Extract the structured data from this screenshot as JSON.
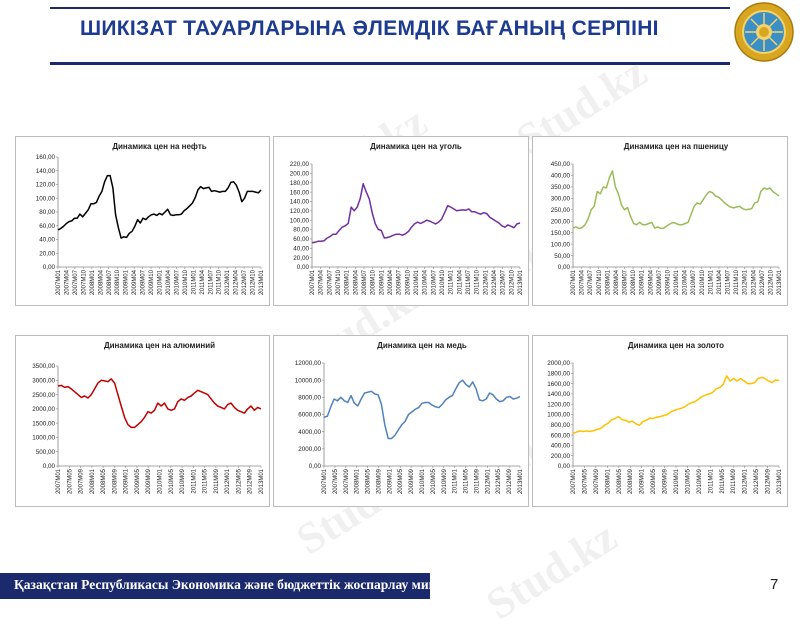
{
  "slide": {
    "title": "ШИКІЗАТ ТАУАРЛАРЫНА ӘЛЕМДІК БАҒАНЫҢ СЕРПІНІ",
    "footer": "Қазақстан Республикасы Экономика және бюджеттік жоспарлау министрлігі",
    "page_number": "7",
    "watermark": "Stud.kz"
  },
  "colors": {
    "title": "#1d3b8f",
    "rule": "#1a2a6c",
    "footer_bg": "#1a2a6c"
  },
  "chart_data": [
    {
      "type": "line",
      "title": "Динамика цен на нефть",
      "color": "#000000",
      "ylim": [
        0,
        160
      ],
      "yticks": [
        "0,00",
        "20,00",
        "40,00",
        "60,00",
        "80,00",
        "100,00",
        "120,00",
        "140,00",
        "160,00"
      ],
      "xticks": [
        "2007M01",
        "2007M04",
        "2007M07",
        "2007M10",
        "2008M01",
        "2008M04",
        "2008M07",
        "2008M10",
        "2009M01",
        "2009M04",
        "2009M07",
        "2009M10",
        "2010M01",
        "2010M04",
        "2010M07",
        "2010M10",
        "2011M01",
        "2011M04",
        "2011M07",
        "2011M10",
        "2012M01",
        "2012M04",
        "2012M07",
        "2012M10",
        "2013M01"
      ],
      "values": [
        54,
        56,
        59,
        63,
        66,
        67,
        71,
        71,
        77,
        73,
        78,
        83,
        92,
        92,
        94,
        103,
        110,
        124,
        133,
        133,
        115,
        76,
        57,
        42,
        44,
        43,
        49,
        52,
        59,
        69,
        64,
        71,
        69,
        73,
        76,
        77,
        75,
        78,
        76,
        80,
        84,
        76,
        75,
        76,
        76,
        77,
        82,
        85,
        89,
        93,
        101,
        112,
        117,
        114,
        115,
        116,
        110,
        111,
        110,
        109,
        110,
        110,
        115,
        123,
        124,
        119,
        109,
        95,
        100,
        110,
        110,
        110,
        109,
        108,
        112
      ]
    },
    {
      "type": "line",
      "title": "Динамика цен на уголь",
      "color": "#7030a0",
      "ylim": [
        0,
        220
      ],
      "yticks": [
        "0,00",
        "20,00",
        "40,00",
        "60,00",
        "80,00",
        "100,00",
        "120,00",
        "140,00",
        "160,00",
        "180,00",
        "200,00",
        "220,00"
      ],
      "xticks": [
        "2007M01",
        "2007M04",
        "2007M07",
        "2007M10",
        "2008M01",
        "2008M04",
        "2008M07",
        "2008M10",
        "2009M01",
        "2009M04",
        "2009M07",
        "2009M10",
        "2010M01",
        "2010M04",
        "2010M07",
        "2010M10",
        "2011M01",
        "2011M04",
        "2011M07",
        "2011M10",
        "2012M01",
        "2012M04",
        "2012M07",
        "2012M10",
        "2013M01"
      ],
      "values": [
        52,
        53,
        55,
        55,
        56,
        62,
        65,
        70,
        70,
        78,
        85,
        88,
        93,
        128,
        120,
        128,
        146,
        178,
        160,
        145,
        115,
        92,
        80,
        78,
        62,
        63,
        65,
        68,
        70,
        70,
        68,
        71,
        76,
        85,
        92,
        96,
        93,
        96,
        100,
        98,
        95,
        92,
        96,
        102,
        116,
        131,
        128,
        124,
        120,
        121,
        122,
        121,
        124,
        118,
        118,
        115,
        113,
        116,
        114,
        106,
        102,
        98,
        94,
        88,
        85,
        90,
        87,
        84,
        92,
        94
      ]
    },
    {
      "type": "line",
      "title": "Динамика цен на пшеницу",
      "color": "#9bbb59",
      "ylim": [
        0,
        450
      ],
      "yticks": [
        "0,00",
        "50,00",
        "100,00",
        "150,00",
        "200,00",
        "250,00",
        "300,00",
        "350,00",
        "400,00",
        "450,00"
      ],
      "xticks": [
        "2007M01",
        "2007M04",
        "2007M07",
        "2007M10",
        "2008M01",
        "2008M04",
        "2008M07",
        "2008M10",
        "2009M01",
        "2009M04",
        "2009M07",
        "2009M10",
        "2010M01",
        "2010M04",
        "2010M07",
        "2010M10",
        "2011M01",
        "2011M04",
        "2011M07",
        "2011M10",
        "2012M01",
        "2012M04",
        "2012M07",
        "2012M10",
        "2013M01"
      ],
      "values": [
        170,
        175,
        168,
        172,
        185,
        210,
        250,
        265,
        330,
        320,
        350,
        345,
        390,
        420,
        350,
        320,
        270,
        250,
        260,
        220,
        190,
        185,
        195,
        185,
        185,
        190,
        195,
        170,
        175,
        168,
        170,
        180,
        188,
        195,
        190,
        185,
        185,
        190,
        195,
        230,
        265,
        280,
        275,
        295,
        315,
        330,
        325,
        310,
        305,
        295,
        280,
        270,
        262,
        258,
        262,
        265,
        255,
        250,
        252,
        255,
        280,
        285,
        330,
        345,
        340,
        345,
        330,
        320,
        310
      ]
    },
    {
      "type": "line",
      "title": "Динамика цен на алюминий",
      "color": "#c00000",
      "ylim": [
        0,
        3500
      ],
      "yticks": [
        "0,00",
        "500,00",
        "1000,00",
        "1500,00",
        "2000,00",
        "2500,00",
        "3000,00",
        "3500,00"
      ],
      "xticks": [
        "2007M01",
        "2007M05",
        "2007M09",
        "2008M01",
        "2008M05",
        "2008M09",
        "2009M01",
        "2009M05",
        "2009M09",
        "2010M01",
        "2010M05",
        "2010M09",
        "2011M01",
        "2011M05",
        "2011M09",
        "2012M01",
        "2012M05",
        "2012M09",
        "2013M01"
      ],
      "values": [
        2800,
        2820,
        2750,
        2780,
        2700,
        2600,
        2500,
        2400,
        2450,
        2380,
        2500,
        2700,
        2900,
        3000,
        2980,
        2950,
        3050,
        2900,
        2500,
        2100,
        1700,
        1450,
        1350,
        1350,
        1450,
        1550,
        1700,
        1900,
        1850,
        1950,
        2200,
        2100,
        2200,
        2000,
        1950,
        2000,
        2250,
        2350,
        2300,
        2400,
        2450,
        2550,
        2650,
        2600,
        2550,
        2500,
        2350,
        2200,
        2100,
        2050,
        2000,
        2150,
        2200,
        2050,
        1950,
        1900,
        1850,
        2000,
        2100,
        1950,
        2050,
        2000
      ]
    },
    {
      "type": "line",
      "title": "Динамика цен на медь",
      "color": "#4f81bd",
      "ylim": [
        0,
        12000
      ],
      "yticks": [
        "0,00",
        "2000,00",
        "4000,00",
        "6000,00",
        "8000,00",
        "10000,00",
        "12000,00"
      ],
      "xticks": [
        "2007M01",
        "2007M05",
        "2007M09",
        "2008M01",
        "2008M05",
        "2008M09",
        "2009M01",
        "2009M05",
        "2009M09",
        "2010M01",
        "2010M05",
        "2010M09",
        "2011M01",
        "2011M05",
        "2011M09",
        "2012M01",
        "2012M05",
        "2012M09",
        "2013M01"
      ],
      "values": [
        5700,
        5800,
        6900,
        7800,
        7600,
        8000,
        7600,
        7400,
        8200,
        7300,
        7000,
        7800,
        8500,
        8600,
        8700,
        8400,
        8300,
        7200,
        4800,
        3200,
        3200,
        3600,
        4200,
        4800,
        5200,
        6000,
        6300,
        6600,
        6800,
        7300,
        7400,
        7400,
        7100,
        6900,
        6800,
        7200,
        7700,
        8000,
        8200,
        9000,
        9700,
        10000,
        9500,
        9200,
        9800,
        9000,
        7700,
        7600,
        7800,
        8500,
        8300,
        7800,
        7500,
        7600,
        8000,
        8100,
        7800,
        7900,
        8100
      ]
    },
    {
      "type": "line",
      "title": "Динамика цен на золото",
      "color": "#ffc000",
      "ylim": [
        0,
        2000
      ],
      "yticks": [
        "0,00",
        "200,00",
        "400,00",
        "600,00",
        "800,00",
        "1000,00",
        "1200,00",
        "1400,00",
        "1600,00",
        "1800,00",
        "2000,00"
      ],
      "xticks": [
        "2007M01",
        "2007M05",
        "2007M09",
        "2008M01",
        "2008M05",
        "2008M09",
        "2009M01",
        "2009M05",
        "2009M09",
        "2010M01",
        "2010M05",
        "2010M09",
        "2011M01",
        "2011M05",
        "2011M09",
        "2012M01",
        "2012M05",
        "2012M09",
        "2013M01"
      ],
      "values": [
        630,
        660,
        680,
        670,
        680,
        670,
        690,
        710,
        730,
        790,
        830,
        890,
        920,
        960,
        900,
        890,
        850,
        870,
        820,
        790,
        860,
        890,
        930,
        920,
        950,
        960,
        980,
        1000,
        1050,
        1080,
        1100,
        1120,
        1150,
        1200,
        1230,
        1250,
        1300,
        1350,
        1380,
        1400,
        1430,
        1500,
        1520,
        1580,
        1750,
        1650,
        1700,
        1650,
        1700,
        1650,
        1600,
        1600,
        1620,
        1700,
        1720,
        1700,
        1650,
        1620,
        1670,
        1660
      ]
    }
  ]
}
